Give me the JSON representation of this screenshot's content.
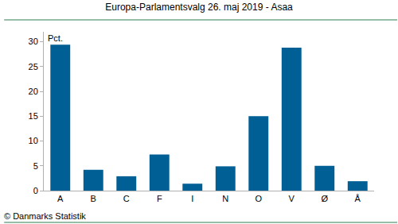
{
  "chart_data": {
    "type": "bar",
    "title": "Europa-Parlamentsvalg 26. maj 2019 - Asaa",
    "ylabel": "Pct.",
    "annotations": [
      "© Danmarks Statistik"
    ],
    "categories": [
      "A",
      "B",
      "C",
      "F",
      "I",
      "N",
      "O",
      "V",
      "Ø",
      "Å"
    ],
    "values": [
      29.4,
      4.2,
      2.9,
      7.3,
      1.4,
      4.9,
      15.0,
      28.8,
      5.0,
      1.9
    ],
    "color": "#005f94",
    "ylim": [
      0,
      32
    ],
    "yticks": [
      0,
      5,
      10,
      15,
      20,
      25,
      30
    ],
    "grid": false
  }
}
